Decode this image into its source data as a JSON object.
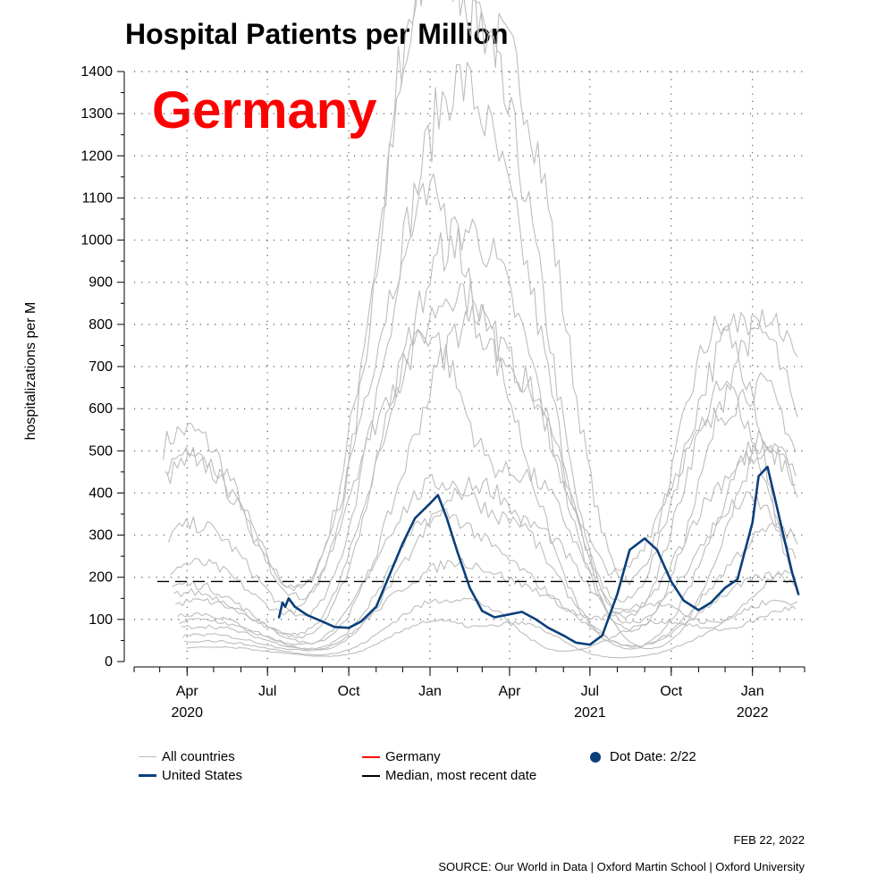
{
  "chart_data": {
    "type": "line",
    "title": "Hospital Patients per Million",
    "highlight_label": "Germany",
    "xlabel": "",
    "ylabel": "hospitalizations per M",
    "ylim": [
      0,
      1400
    ],
    "yticks": [
      0,
      100,
      200,
      300,
      400,
      500,
      600,
      700,
      800,
      900,
      1000,
      1100,
      1200,
      1300,
      1400
    ],
    "xlim": [
      "2020-02-01",
      "2022-03-01"
    ],
    "xticks": [
      {
        "date": "2020-04-01",
        "label": "Apr",
        "year": "2020"
      },
      {
        "date": "2020-07-01",
        "label": "Jul",
        "year": ""
      },
      {
        "date": "2020-10-01",
        "label": "Oct",
        "year": ""
      },
      {
        "date": "2021-01-01",
        "label": "Jan",
        "year": ""
      },
      {
        "date": "2021-04-01",
        "label": "Apr",
        "year": ""
      },
      {
        "date": "2021-07-01",
        "label": "Jul",
        "year": "2021"
      },
      {
        "date": "2021-10-01",
        "label": "Oct",
        "year": ""
      },
      {
        "date": "2022-01-01",
        "label": "Jan",
        "year": "2022"
      }
    ],
    "grid": true,
    "median_value": 190,
    "series": [
      {
        "name": "United States",
        "color": "#0b3f7a",
        "points": [
          [
            "2020-07-14",
            105
          ],
          [
            "2020-07-18",
            140
          ],
          [
            "2020-07-21",
            130
          ],
          [
            "2020-07-25",
            150
          ],
          [
            "2020-08-01",
            130
          ],
          [
            "2020-08-15",
            110
          ],
          [
            "2020-09-01",
            95
          ],
          [
            "2020-09-15",
            82
          ],
          [
            "2020-10-01",
            80
          ],
          [
            "2020-10-15",
            95
          ],
          [
            "2020-11-01",
            130
          ],
          [
            "2020-11-15",
            200
          ],
          [
            "2020-12-01",
            280
          ],
          [
            "2020-12-15",
            340
          ],
          [
            "2021-01-01",
            375
          ],
          [
            "2021-01-10",
            395
          ],
          [
            "2021-01-20",
            340
          ],
          [
            "2021-02-01",
            260
          ],
          [
            "2021-02-15",
            175
          ],
          [
            "2021-03-01",
            120
          ],
          [
            "2021-03-15",
            105
          ],
          [
            "2021-04-01",
            112
          ],
          [
            "2021-04-15",
            118
          ],
          [
            "2021-05-01",
            100
          ],
          [
            "2021-05-15",
            80
          ],
          [
            "2021-06-01",
            62
          ],
          [
            "2021-06-15",
            45
          ],
          [
            "2021-07-01",
            40
          ],
          [
            "2021-07-15",
            62
          ],
          [
            "2021-08-01",
            160
          ],
          [
            "2021-08-15",
            265
          ],
          [
            "2021-09-01",
            292
          ],
          [
            "2021-09-15",
            265
          ],
          [
            "2021-10-01",
            190
          ],
          [
            "2021-10-15",
            145
          ],
          [
            "2021-11-01",
            122
          ],
          [
            "2021-11-15",
            140
          ],
          [
            "2021-12-01",
            175
          ],
          [
            "2021-12-15",
            195
          ],
          [
            "2022-01-01",
            330
          ],
          [
            "2022-01-08",
            440
          ],
          [
            "2022-01-18",
            462
          ],
          [
            "2022-01-25",
            400
          ],
          [
            "2022-02-05",
            300
          ],
          [
            "2022-02-15",
            210
          ],
          [
            "2022-02-22",
            160
          ]
        ]
      },
      {
        "name": "Germany",
        "color": "#ff0000",
        "points": []
      }
    ],
    "background_countries": [
      {
        "peaks": [
          [
            "2020-04-01",
            545
          ],
          [
            "2020-11-15",
            780
          ],
          [
            "2021-01-12",
            955
          ],
          [
            "2021-04-10",
            1300
          ],
          [
            "2021-11-25",
            785
          ]
        ]
      },
      {
        "peaks": [
          [
            "2020-04-05",
            490
          ],
          [
            "2020-11-20",
            700
          ],
          [
            "2021-01-05",
            930
          ],
          [
            "2021-03-25",
            1190
          ],
          [
            "2021-12-01",
            640
          ]
        ]
      },
      {
        "peaks": [
          [
            "2020-04-08",
            470
          ],
          [
            "2020-11-10",
            620
          ],
          [
            "2021-01-20",
            740
          ],
          [
            "2021-03-30",
            940
          ],
          [
            "2022-01-20",
            510
          ]
        ]
      },
      {
        "peaks": [
          [
            "2020-04-10",
            320
          ],
          [
            "2020-11-25",
            590
          ],
          [
            "2021-01-15",
            600
          ],
          [
            "2021-04-15",
            620
          ],
          [
            "2021-11-20",
            600
          ],
          [
            "2022-02-10",
            600
          ]
        ]
      },
      {
        "peaks": [
          [
            "2020-04-12",
            230
          ],
          [
            "2020-11-05",
            500
          ],
          [
            "2021-01-25",
            600
          ],
          [
            "2021-04-20",
            590
          ],
          [
            "2021-10-25",
            440
          ],
          [
            "2022-01-25",
            540
          ]
        ]
      },
      {
        "peaks": [
          [
            "2020-04-03",
            180
          ],
          [
            "2020-12-01",
            520
          ],
          [
            "2021-02-01",
            450
          ],
          [
            "2021-04-05",
            700
          ],
          [
            "2021-12-10",
            480
          ],
          [
            "2022-02-01",
            430
          ]
        ]
      },
      {
        "peaks": [
          [
            "2020-04-06",
            160
          ],
          [
            "2020-11-18",
            380
          ],
          [
            "2021-01-08",
            500
          ],
          [
            "2021-04-25",
            420
          ],
          [
            "2021-11-15",
            320
          ],
          [
            "2022-02-05",
            380
          ]
        ]
      },
      {
        "peaks": [
          [
            "2020-04-14",
            140
          ],
          [
            "2020-12-10",
            320
          ],
          [
            "2021-02-10",
            300
          ],
          [
            "2021-03-20",
            480
          ],
          [
            "2021-12-15",
            260
          ],
          [
            "2022-01-30",
            330
          ]
        ]
      },
      {
        "peaks": [
          [
            "2020-04-09",
            110
          ],
          [
            "2020-11-28",
            260
          ],
          [
            "2021-01-28",
            240
          ],
          [
            "2021-05-01",
            300
          ],
          [
            "2021-11-10",
            190
          ],
          [
            "2022-01-15",
            280
          ]
        ]
      },
      {
        "peaks": [
          [
            "2020-04-15",
            95
          ],
          [
            "2020-12-18",
            200
          ],
          [
            "2021-02-20",
            180
          ],
          [
            "2021-04-12",
            250
          ],
          [
            "2021-12-05",
            150
          ],
          [
            "2022-02-12",
            240
          ]
        ]
      },
      {
        "peaks": [
          [
            "2020-04-18",
            80
          ],
          [
            "2020-12-05",
            170
          ],
          [
            "2021-01-18",
            160
          ],
          [
            "2021-04-02",
            200
          ],
          [
            "2021-09-10",
            130
          ],
          [
            "2022-02-08",
            200
          ]
        ]
      },
      {
        "peaks": [
          [
            "2020-04-20",
            60
          ],
          [
            "2020-11-30",
            130
          ],
          [
            "2021-02-05",
            140
          ],
          [
            "2021-04-28",
            150
          ],
          [
            "2021-11-30",
            120
          ],
          [
            "2022-02-15",
            150
          ]
        ]
      },
      {
        "peaks": [
          [
            "2020-04-22",
            45
          ],
          [
            "2020-12-22",
            110
          ],
          [
            "2021-03-05",
            100
          ],
          [
            "2021-09-20",
            90
          ],
          [
            "2022-02-18",
            120
          ]
        ]
      },
      {
        "peaks": [
          [
            "2020-05-01",
            30
          ],
          [
            "2021-01-02",
            90
          ],
          [
            "2021-04-18",
            80
          ],
          [
            "2021-12-20",
            70
          ],
          [
            "2022-02-20",
            95
          ]
        ]
      }
    ]
  },
  "legend": {
    "all_countries": "All countries",
    "germany": "Germany",
    "dot_date": "Dot Date: 2/22",
    "united_states": "United States",
    "median": "Median, most recent date",
    "colors": {
      "all": "#bbbbbb",
      "germany": "#ff0000",
      "dot": "#0b3f7a",
      "us": "#0b3f7a",
      "median": "#000000"
    }
  },
  "footer": {
    "date": "FEB 22, 2022",
    "source": "SOURCE: Our World in Data | Oxford Martin School | Oxford University"
  }
}
